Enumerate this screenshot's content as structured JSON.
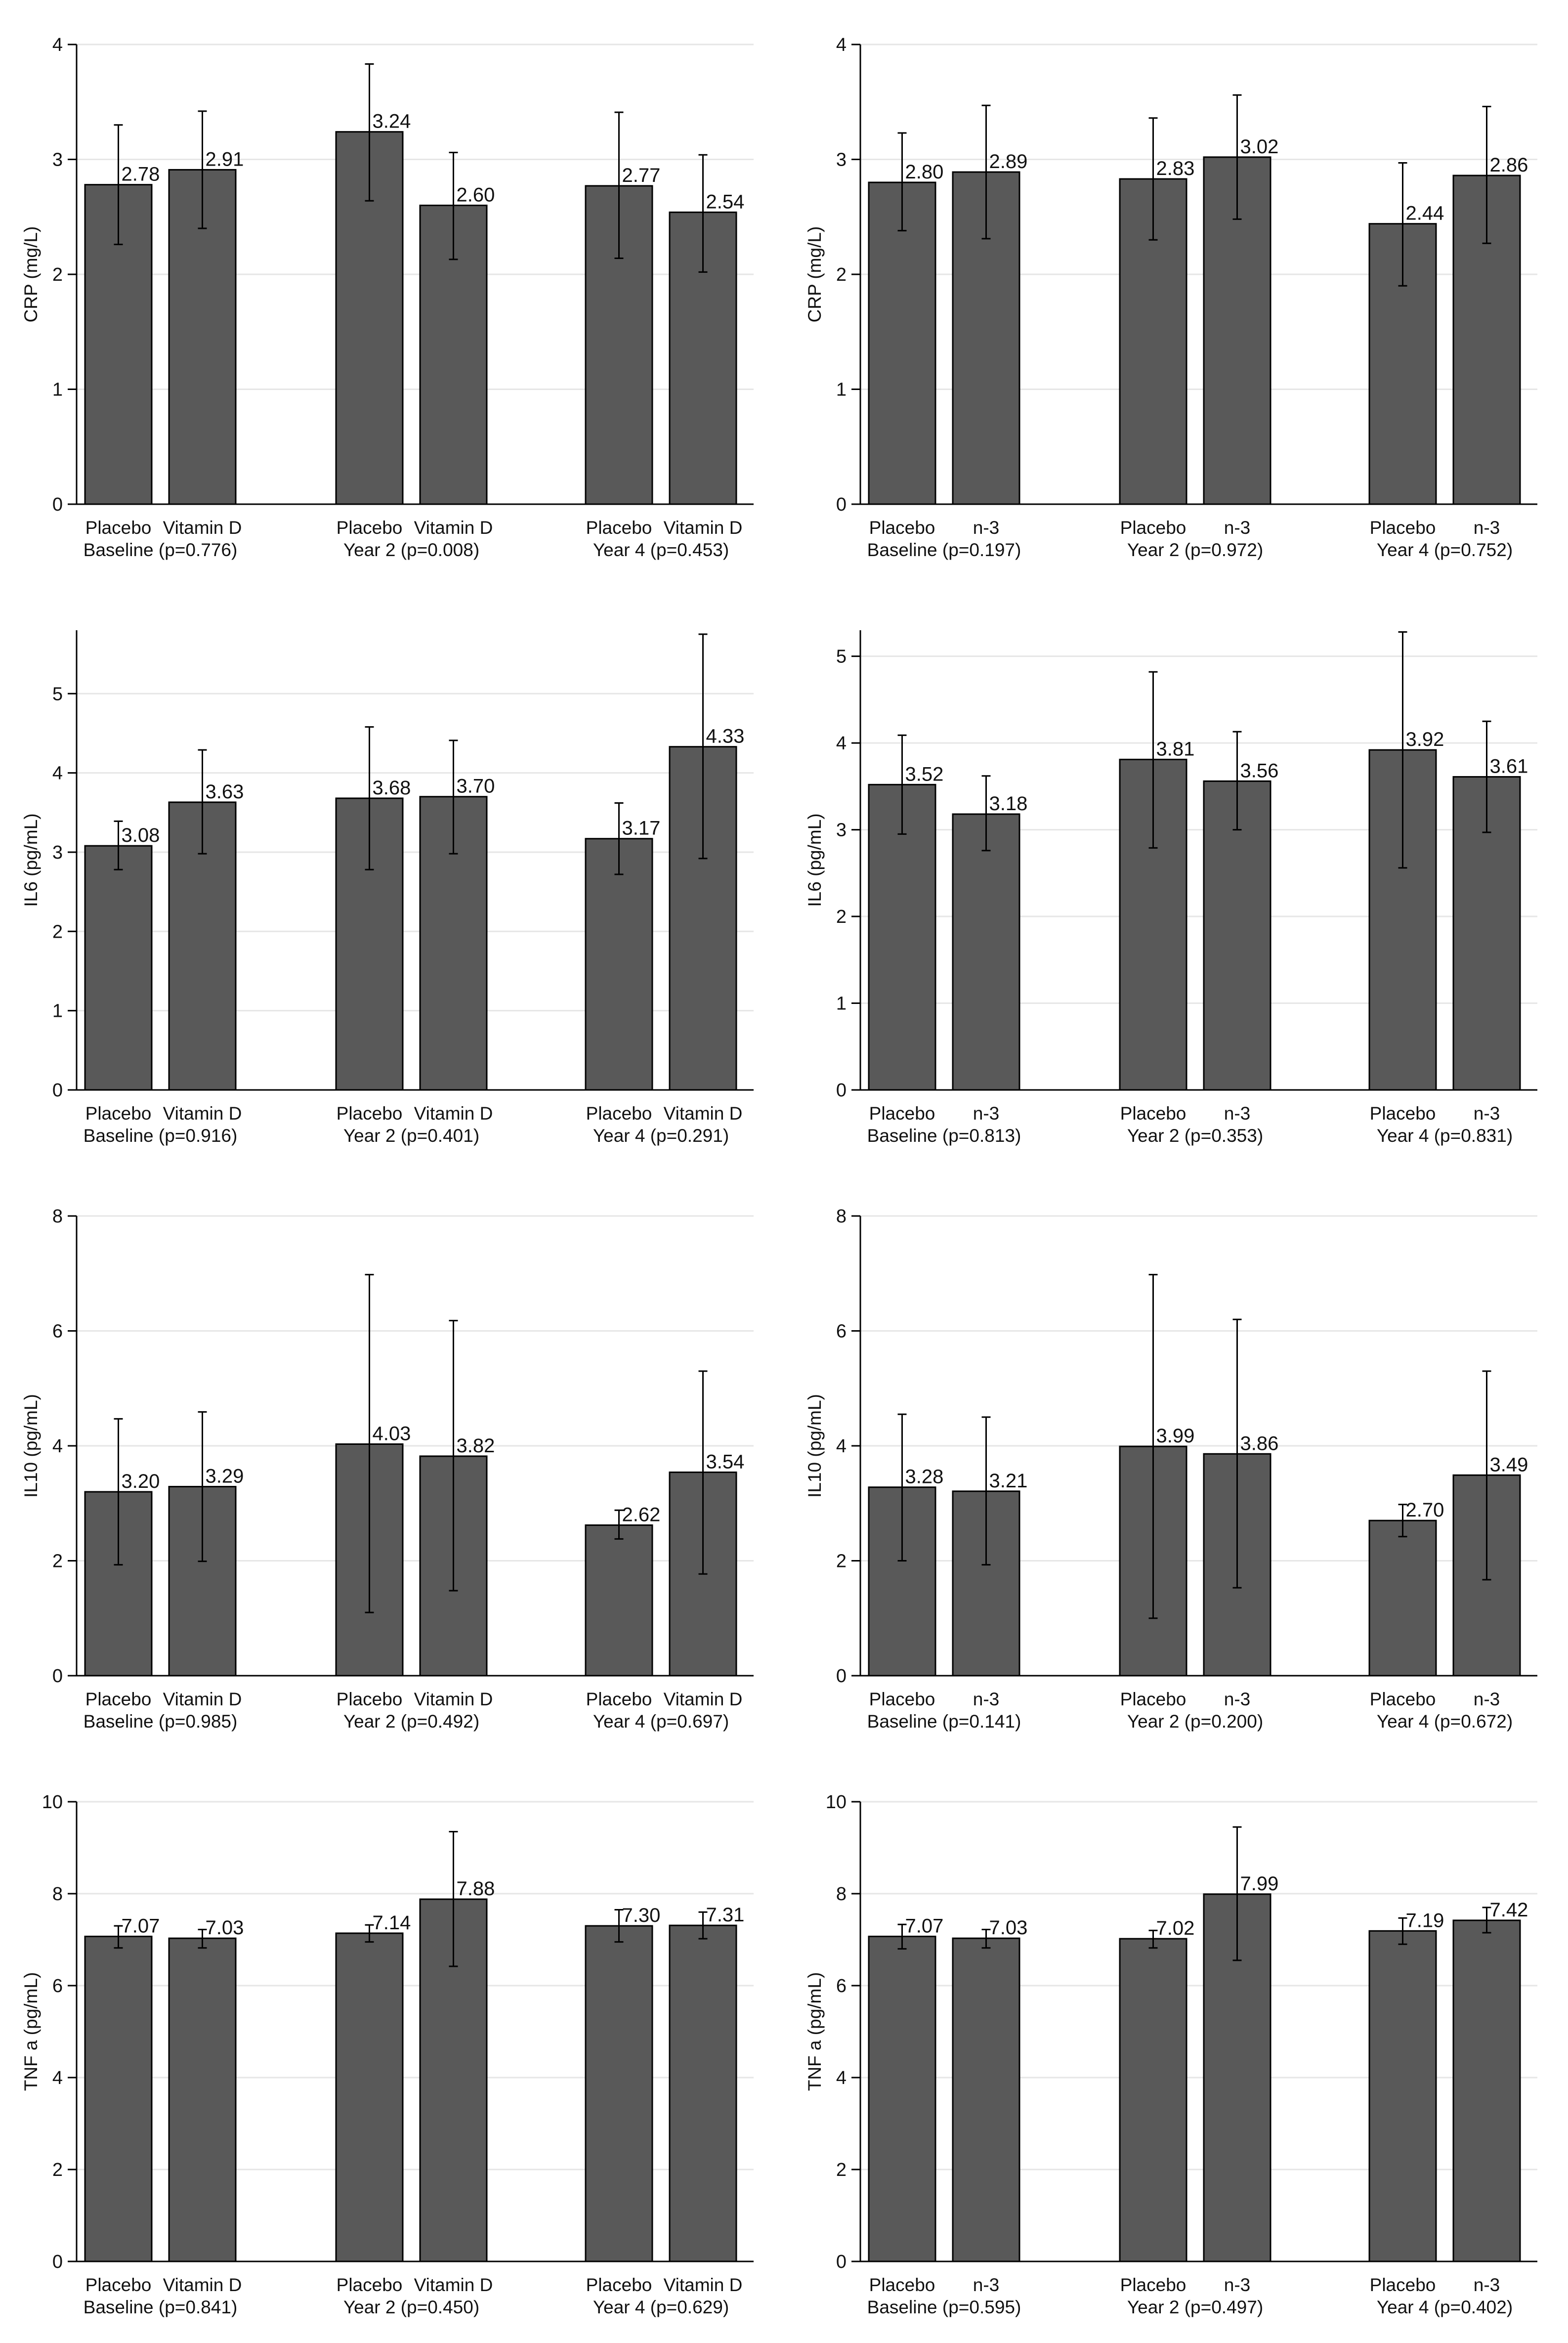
{
  "colors": {
    "bar_fill": "#595959",
    "bar_stroke": "#000000",
    "error_bar": "#000000",
    "grid": "#e6e6e6",
    "axis": "#000000"
  },
  "chart_data": [
    {
      "type": "bar",
      "position": "row1-left",
      "ylabel": "CRP (mg/L)",
      "ylim": [
        0,
        4
      ],
      "yticks": [
        0,
        1,
        2,
        3,
        4
      ],
      "categories": [
        "Placebo",
        "Vitamin D"
      ],
      "groups": [
        {
          "label": "Baseline (p=0.776)",
          "bars": [
            {
              "name": "Placebo",
              "value": 2.78,
              "value_label": "2.78",
              "ci": [
                2.26,
                3.3
              ]
            },
            {
              "name": "Vitamin D",
              "value": 2.91,
              "value_label": "2.91",
              "ci": [
                2.4,
                3.42
              ]
            }
          ]
        },
        {
          "label": "Year 2 (p=0.008)",
          "bars": [
            {
              "name": "Placebo",
              "value": 3.24,
              "value_label": "3.24",
              "ci": [
                2.64,
                3.83
              ]
            },
            {
              "name": "Vitamin D",
              "value": 2.6,
              "value_label": "2.60",
              "ci": [
                2.13,
                3.06
              ]
            }
          ]
        },
        {
          "label": "Year 4 (p=0.453)",
          "bars": [
            {
              "name": "Placebo",
              "value": 2.77,
              "value_label": "2.77",
              "ci": [
                2.14,
                3.41
              ]
            },
            {
              "name": "Vitamin D",
              "value": 2.54,
              "value_label": "2.54",
              "ci": [
                2.02,
                3.04
              ]
            }
          ]
        }
      ]
    },
    {
      "type": "bar",
      "position": "row1-right",
      "ylabel": "CRP (mg/L)",
      "ylim": [
        0,
        4
      ],
      "yticks": [
        0,
        1,
        2,
        3,
        4
      ],
      "categories": [
        "Placebo",
        "n-3"
      ],
      "groups": [
        {
          "label": "Baseline (p=0.197)",
          "bars": [
            {
              "name": "Placebo",
              "value": 2.8,
              "value_label": "2.80",
              "ci": [
                2.38,
                3.23
              ]
            },
            {
              "name": "n-3",
              "value": 2.89,
              "value_label": "2.89",
              "ci": [
                2.31,
                3.47
              ]
            }
          ]
        },
        {
          "label": "Year 2 (p=0.972)",
          "bars": [
            {
              "name": "Placebo",
              "value": 2.83,
              "value_label": "2.83",
              "ci": [
                2.3,
                3.36
              ]
            },
            {
              "name": "n-3",
              "value": 3.02,
              "value_label": "3.02",
              "ci": [
                2.48,
                3.56
              ]
            }
          ]
        },
        {
          "label": "Year 4 (p=0.752)",
          "bars": [
            {
              "name": "Placebo",
              "value": 2.44,
              "value_label": "2.44",
              "ci": [
                1.9,
                2.97
              ]
            },
            {
              "name": "n-3",
              "value": 2.86,
              "value_label": "2.86",
              "ci": [
                2.27,
                3.46
              ]
            }
          ]
        }
      ]
    },
    {
      "type": "bar",
      "position": "row2-left",
      "ylabel": "IL6 (pg/mL)",
      "ylim": [
        0,
        5.8
      ],
      "yticks": [
        0,
        1,
        2,
        3,
        4,
        5
      ],
      "categories": [
        "Placebo",
        "Vitamin D"
      ],
      "groups": [
        {
          "label": "Baseline (p=0.916)",
          "bars": [
            {
              "name": "Placebo",
              "value": 3.08,
              "value_label": "3.08",
              "ci": [
                2.78,
                3.39
              ]
            },
            {
              "name": "Vitamin D",
              "value": 3.63,
              "value_label": "3.63",
              "ci": [
                2.98,
                4.29
              ]
            }
          ]
        },
        {
          "label": "Year 2 (p=0.401)",
          "bars": [
            {
              "name": "Placebo",
              "value": 3.68,
              "value_label": "3.68",
              "ci": [
                2.78,
                4.58
              ]
            },
            {
              "name": "Vitamin D",
              "value": 3.7,
              "value_label": "3.70",
              "ci": [
                2.98,
                4.41
              ]
            }
          ]
        },
        {
          "label": "Year 4 (p=0.291)",
          "bars": [
            {
              "name": "Placebo",
              "value": 3.17,
              "value_label": "3.17",
              "ci": [
                2.72,
                3.62
              ]
            },
            {
              "name": "Vitamin D",
              "value": 4.33,
              "value_label": "4.33",
              "ci": [
                2.92,
                5.75
              ]
            }
          ]
        }
      ]
    },
    {
      "type": "bar",
      "position": "row2-right",
      "ylabel": "IL6 (pg/mL)",
      "ylim": [
        0,
        5.3
      ],
      "yticks": [
        0,
        1,
        2,
        3,
        4,
        5
      ],
      "categories": [
        "Placebo",
        "n-3"
      ],
      "groups": [
        {
          "label": "Baseline (p=0.813)",
          "bars": [
            {
              "name": "Placebo",
              "value": 3.52,
              "value_label": "3.52",
              "ci": [
                2.95,
                4.09
              ]
            },
            {
              "name": "n-3",
              "value": 3.18,
              "value_label": "3.18",
              "ci": [
                2.76,
                3.62
              ]
            }
          ]
        },
        {
          "label": "Year 2 (p=0.353)",
          "bars": [
            {
              "name": "Placebo",
              "value": 3.81,
              "value_label": "3.81",
              "ci": [
                2.79,
                4.82
              ]
            },
            {
              "name": "n-3",
              "value": 3.56,
              "value_label": "3.56",
              "ci": [
                3.0,
                4.13
              ]
            }
          ]
        },
        {
          "label": "Year 4 (p=0.831)",
          "bars": [
            {
              "name": "Placebo",
              "value": 3.92,
              "value_label": "3.92",
              "ci": [
                2.56,
                5.28
              ]
            },
            {
              "name": "n-3",
              "value": 3.61,
              "value_label": "3.61",
              "ci": [
                2.97,
                4.25
              ]
            }
          ]
        }
      ]
    },
    {
      "type": "bar",
      "position": "row3-left",
      "ylabel": "IL10 (pg/mL)",
      "ylim": [
        0,
        8
      ],
      "yticks": [
        0,
        2,
        4,
        6,
        8
      ],
      "categories": [
        "Placebo",
        "Vitamin D"
      ],
      "groups": [
        {
          "label": "Baseline (p=0.985)",
          "bars": [
            {
              "name": "Placebo",
              "value": 3.2,
              "value_label": "3.20",
              "ci": [
                1.93,
                4.47
              ]
            },
            {
              "name": "Vitamin D",
              "value": 3.29,
              "value_label": "3.29",
              "ci": [
                1.99,
                4.59
              ]
            }
          ]
        },
        {
          "label": "Year 2 (p=0.492)",
          "bars": [
            {
              "name": "Placebo",
              "value": 4.03,
              "value_label": "4.03",
              "ci": [
                1.1,
                6.98
              ]
            },
            {
              "name": "Vitamin D",
              "value": 3.82,
              "value_label": "3.82",
              "ci": [
                1.48,
                6.18
              ]
            }
          ]
        },
        {
          "label": "Year 4 (p=0.697)",
          "bars": [
            {
              "name": "Placebo",
              "value": 2.62,
              "value_label": "2.62",
              "ci": [
                2.38,
                2.88
              ]
            },
            {
              "name": "Vitamin D",
              "value": 3.54,
              "value_label": "3.54",
              "ci": [
                1.77,
                5.3
              ]
            }
          ]
        }
      ]
    },
    {
      "type": "bar",
      "position": "row3-right",
      "ylabel": "IL10 (pg/mL)",
      "ylim": [
        0,
        8
      ],
      "yticks": [
        0,
        2,
        4,
        6,
        8
      ],
      "categories": [
        "Placebo",
        "n-3"
      ],
      "groups": [
        {
          "label": "Baseline (p=0.141)",
          "bars": [
            {
              "name": "Placebo",
              "value": 3.28,
              "value_label": "3.28",
              "ci": [
                2.0,
                4.55
              ]
            },
            {
              "name": "n-3",
              "value": 3.21,
              "value_label": "3.21",
              "ci": [
                1.93,
                4.5
              ]
            }
          ]
        },
        {
          "label": "Year 2 (p=0.200)",
          "bars": [
            {
              "name": "Placebo",
              "value": 3.99,
              "value_label": "3.99",
              "ci": [
                1.0,
                6.98
              ]
            },
            {
              "name": "n-3",
              "value": 3.86,
              "value_label": "3.86",
              "ci": [
                1.53,
                6.2
              ]
            }
          ]
        },
        {
          "label": "Year 4 (p=0.672)",
          "bars": [
            {
              "name": "Placebo",
              "value": 2.7,
              "value_label": "2.70",
              "ci": [
                2.42,
                2.98
              ]
            },
            {
              "name": "n-3",
              "value": 3.49,
              "value_label": "3.49",
              "ci": [
                1.67,
                5.3
              ]
            }
          ]
        }
      ]
    },
    {
      "type": "bar",
      "position": "row4-left",
      "ylabel": "TNF a (pg/mL)",
      "ylim": [
        0,
        10
      ],
      "yticks": [
        0,
        2,
        4,
        6,
        8,
        10
      ],
      "categories": [
        "Placebo",
        "Vitamin D"
      ],
      "groups": [
        {
          "label": "Baseline (p=0.841)",
          "bars": [
            {
              "name": "Placebo",
              "value": 7.07,
              "value_label": "7.07",
              "ci": [
                6.82,
                7.3
              ]
            },
            {
              "name": "Vitamin D",
              "value": 7.03,
              "value_label": "7.03",
              "ci": [
                6.82,
                7.22
              ]
            }
          ]
        },
        {
          "label": "Year 2 (p=0.450)",
          "bars": [
            {
              "name": "Placebo",
              "value": 7.14,
              "value_label": "7.14",
              "ci": [
                6.95,
                7.32
              ]
            },
            {
              "name": "Vitamin D",
              "value": 7.88,
              "value_label": "7.88",
              "ci": [
                6.42,
                9.35
              ]
            }
          ]
        },
        {
          "label": "Year 4 (p=0.629)",
          "bars": [
            {
              "name": "Placebo",
              "value": 7.3,
              "value_label": "7.30",
              "ci": [
                6.95,
                7.65
              ]
            },
            {
              "name": "Vitamin D",
              "value": 7.31,
              "value_label": "7.31",
              "ci": [
                7.02,
                7.6
              ]
            }
          ]
        }
      ]
    },
    {
      "type": "bar",
      "position": "row4-right",
      "ylabel": "TNF a (pg/mL)",
      "ylim": [
        0,
        10
      ],
      "yticks": [
        0,
        2,
        4,
        6,
        8,
        10
      ],
      "categories": [
        "Placebo",
        "n-3"
      ],
      "groups": [
        {
          "label": "Baseline (p=0.595)",
          "bars": [
            {
              "name": "Placebo",
              "value": 7.07,
              "value_label": "7.07",
              "ci": [
                6.8,
                7.33
              ]
            },
            {
              "name": "n-3",
              "value": 7.03,
              "value_label": "7.03",
              "ci": [
                6.82,
                7.22
              ]
            }
          ]
        },
        {
          "label": "Year 2 (p=0.497)",
          "bars": [
            {
              "name": "Placebo",
              "value": 7.02,
              "value_label": "7.02",
              "ci": [
                6.82,
                7.2
              ]
            },
            {
              "name": "n-3",
              "value": 7.99,
              "value_label": "7.99",
              "ci": [
                6.55,
                9.45
              ]
            }
          ]
        },
        {
          "label": "Year 4 (p=0.402)",
          "bars": [
            {
              "name": "Placebo",
              "value": 7.19,
              "value_label": "7.19",
              "ci": [
                6.9,
                7.47
              ]
            },
            {
              "name": "n-3",
              "value": 7.42,
              "value_label": "7.42",
              "ci": [
                7.15,
                7.7
              ]
            }
          ]
        }
      ]
    }
  ]
}
